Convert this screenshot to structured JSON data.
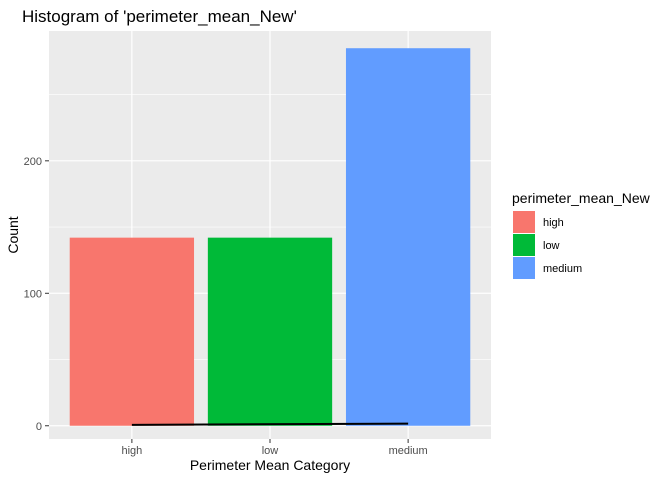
{
  "chart_data": {
    "type": "bar",
    "title": "Histogram of 'perimeter_mean_New'",
    "xlabel": "Perimeter Mean Category",
    "ylabel": "Count",
    "categories": [
      "high",
      "low",
      "medium"
    ],
    "values": [
      142,
      142,
      285
    ],
    "colors": [
      "#F8766D",
      "#00BA38",
      "#619CFF"
    ],
    "ylim": [
      -10,
      298
    ],
    "yticks": [
      0,
      100,
      200
    ],
    "grid": true,
    "legend": {
      "title": "perimeter_mean_New",
      "entries": [
        "high",
        "low",
        "medium"
      ],
      "position": "right"
    },
    "line": {
      "x": [
        "high",
        "medium"
      ],
      "y": [
        0.7,
        1.6
      ],
      "color": "#000000"
    }
  }
}
